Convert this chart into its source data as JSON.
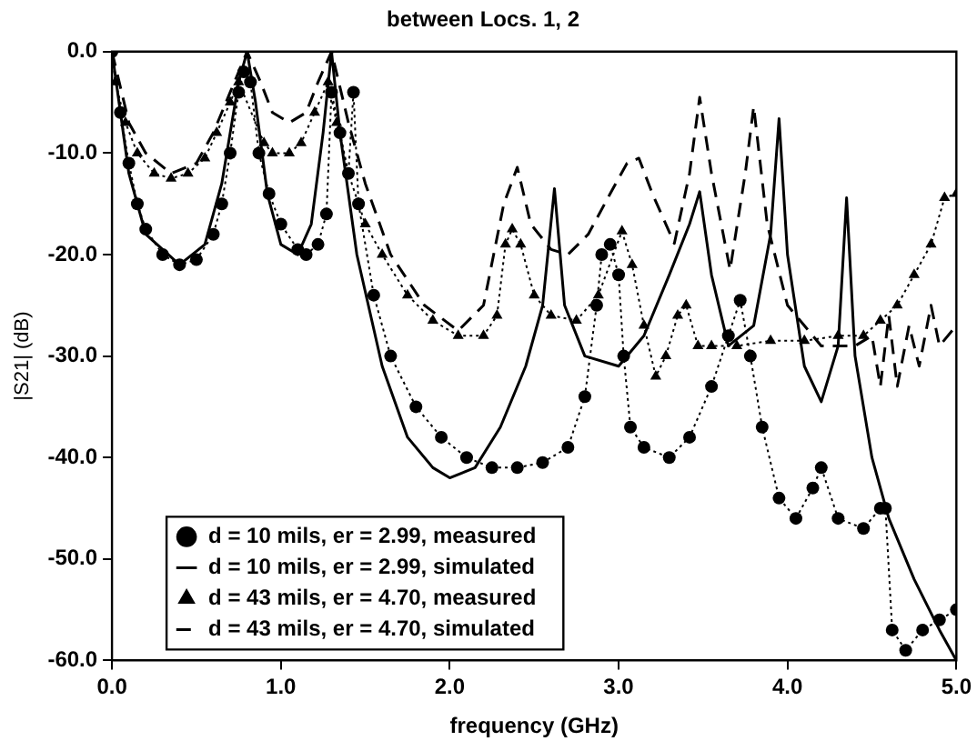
{
  "chart_data": {
    "type": "line",
    "title": "between Locs. 1, 2",
    "xlabel": "frequency (GHz)",
    "ylabel": "|S21| (dB)",
    "xlim": [
      0,
      5
    ],
    "xticks": [
      {
        "value": 0,
        "label": "0.0"
      },
      {
        "value": 1,
        "label": "1.0"
      },
      {
        "value": 2,
        "label": "2.0"
      },
      {
        "value": 3,
        "label": "3.0"
      },
      {
        "value": 4,
        "label": "4.0"
      },
      {
        "value": 5,
        "label": "5.0"
      }
    ],
    "ylim": [
      -60,
      0
    ],
    "yticks": [
      {
        "value": 0,
        "label": "0.0"
      },
      {
        "value": -10,
        "label": "-10.0"
      },
      {
        "value": -20,
        "label": "-20.0"
      },
      {
        "value": -30,
        "label": "-30.0"
      },
      {
        "value": -40,
        "label": "-40.0"
      },
      {
        "value": -50,
        "label": "-50.0"
      },
      {
        "value": -60,
        "label": "-60.0"
      }
    ],
    "legend": "bottom left",
    "series": [
      {
        "name": "d = 10 mils, er = 2.99, measured",
        "color": "#000000",
        "marker": "circle",
        "line_style": "dotted",
        "x": [
          0,
          0.05,
          0.1,
          0.15,
          0.2,
          0.3,
          0.4,
          0.5,
          0.6,
          0.65,
          0.7,
          0.75,
          0.78,
          0.82,
          0.87,
          0.93,
          1.0,
          1.1,
          1.15,
          1.22,
          1.27,
          1.3,
          1.35,
          1.4,
          1.43,
          1.46,
          1.55,
          1.65,
          1.8,
          1.95,
          2.1,
          2.25,
          2.4,
          2.55,
          2.7,
          2.8,
          2.87,
          2.9,
          2.95,
          3.0,
          3.03,
          3.07,
          3.15,
          3.3,
          3.42,
          3.55,
          3.65,
          3.72,
          3.78,
          3.85,
          3.95,
          4.05,
          4.15,
          4.2,
          4.3,
          4.45,
          4.55,
          4.58,
          4.62,
          4.7,
          4.8,
          4.9,
          5.0
        ],
        "values": [
          0,
          -6,
          -11,
          -15,
          -17.5,
          -20,
          -21,
          -20.5,
          -18,
          -15,
          -10,
          -4,
          -2,
          -3,
          -10,
          -14,
          -17,
          -19.5,
          -20,
          -19,
          -16,
          -4,
          -8,
          -12,
          -4,
          -15,
          -24,
          -30,
          -35,
          -38,
          -40,
          -41,
          -41,
          -40.5,
          -39,
          -34,
          -25,
          -20,
          -19,
          -22,
          -30,
          -37,
          -39,
          -40,
          -38,
          -33,
          -28,
          -24.5,
          -30,
          -37,
          -44,
          -46,
          -43,
          -41,
          -46,
          -47,
          -45,
          -45,
          -57,
          -59,
          -57,
          -56,
          -55
        ]
      },
      {
        "name": "d = 10 mils, er = 2.99, simulated",
        "color": "#000000",
        "marker": "none",
        "line_style": "solid",
        "x": [
          0,
          0.1,
          0.2,
          0.4,
          0.55,
          0.65,
          0.75,
          0.8,
          0.85,
          0.92,
          1.0,
          1.1,
          1.18,
          1.25,
          1.3,
          1.35,
          1.45,
          1.6,
          1.75,
          1.9,
          2.0,
          2.15,
          2.3,
          2.45,
          2.55,
          2.62,
          2.68,
          2.8,
          3.0,
          3.15,
          3.3,
          3.42,
          3.48,
          3.55,
          3.65,
          3.8,
          3.9,
          3.95,
          4.0,
          4.1,
          4.2,
          4.3,
          4.35,
          4.4,
          4.5,
          4.6,
          4.75,
          4.9,
          5.0
        ],
        "values": [
          0,
          -12,
          -18,
          -21,
          -19,
          -13,
          -3,
          0,
          -5,
          -14,
          -19,
          -20,
          -17,
          -8,
          0,
          -8,
          -20,
          -31,
          -38,
          -41,
          -42,
          -41,
          -37,
          -31,
          -25,
          -13.5,
          -25,
          -30,
          -31,
          -28,
          -22,
          -17,
          -13.8,
          -22,
          -29,
          -27,
          -18,
          -6.6,
          -20,
          -31,
          -34.5,
          -29,
          -14.4,
          -30,
          -40,
          -46,
          -52,
          -57,
          -60
        ]
      },
      {
        "name": "d = 43 mils, er = 4.70, measured",
        "color": "#000000",
        "marker": "triangle",
        "line_style": "dotted",
        "x": [
          0,
          0.02,
          0.08,
          0.15,
          0.25,
          0.35,
          0.45,
          0.55,
          0.62,
          0.7,
          0.75,
          0.8,
          0.85,
          0.9,
          0.95,
          1.05,
          1.12,
          1.2,
          1.28,
          1.33,
          1.4,
          1.5,
          1.6,
          1.75,
          1.9,
          2.05,
          2.2,
          2.28,
          2.33,
          2.37,
          2.42,
          2.5,
          2.6,
          2.75,
          2.88,
          2.96,
          3.02,
          3.08,
          3.15,
          3.22,
          3.28,
          3.35,
          3.4,
          3.47,
          3.55,
          3.7,
          3.9,
          4.1,
          4.3,
          4.45,
          4.55,
          4.65,
          4.75,
          4.85,
          4.93,
          5.0
        ],
        "values": [
          0,
          -3,
          -7,
          -10,
          -12,
          -12.5,
          -12,
          -10.5,
          -8,
          -5,
          -3,
          null,
          null,
          -9,
          -10,
          -10,
          -9,
          -6,
          -3,
          -7,
          -12,
          -17,
          -20,
          -24,
          -26.5,
          -28,
          -28,
          -26,
          -19,
          -17.5,
          -19,
          -24,
          -26,
          -26.5,
          -24,
          null,
          -17.7,
          -21,
          -27,
          -32,
          -30,
          -26,
          -25,
          -29,
          -29,
          -29,
          -28.5,
          -28.5,
          -28,
          -28,
          -26.5,
          -25,
          -22,
          -19,
          -14.4,
          -14
        ]
      },
      {
        "name": "d = 43 mils, er = 4.70, simulated",
        "color": "#000000",
        "marker": "none",
        "line_style": "dashed",
        "x": [
          0,
          0.1,
          0.2,
          0.35,
          0.5,
          0.6,
          0.7,
          0.8,
          0.88,
          0.95,
          1.05,
          1.15,
          1.22,
          1.3,
          1.4,
          1.5,
          1.65,
          1.85,
          2.05,
          2.2,
          2.32,
          2.4,
          2.48,
          2.6,
          2.7,
          2.82,
          2.95,
          3.05,
          3.12,
          3.2,
          3.33,
          3.42,
          3.48,
          3.55,
          3.66,
          3.75,
          3.8,
          3.88,
          4.0,
          4.2,
          4.4,
          4.5,
          4.55,
          4.6,
          4.65,
          4.72,
          4.78,
          4.85,
          4.9,
          5.0
        ],
        "values": [
          0,
          -7,
          -10,
          -12,
          -11,
          -8,
          -4,
          0,
          -3,
          -6,
          -7,
          -6,
          -3,
          0,
          -7,
          -13,
          -20,
          -25,
          -27.5,
          -25,
          -15,
          -11.4,
          -17,
          -19.5,
          -20,
          -18,
          -14,
          -11,
          -10.5,
          -14,
          -18.9,
          -12,
          -4.5,
          -12,
          -21.5,
          -12,
          -5.4,
          -17,
          -25,
          -29,
          -29,
          -28,
          -33,
          -26,
          -33,
          -27,
          -31,
          -25,
          -29,
          -27
        ]
      }
    ]
  }
}
